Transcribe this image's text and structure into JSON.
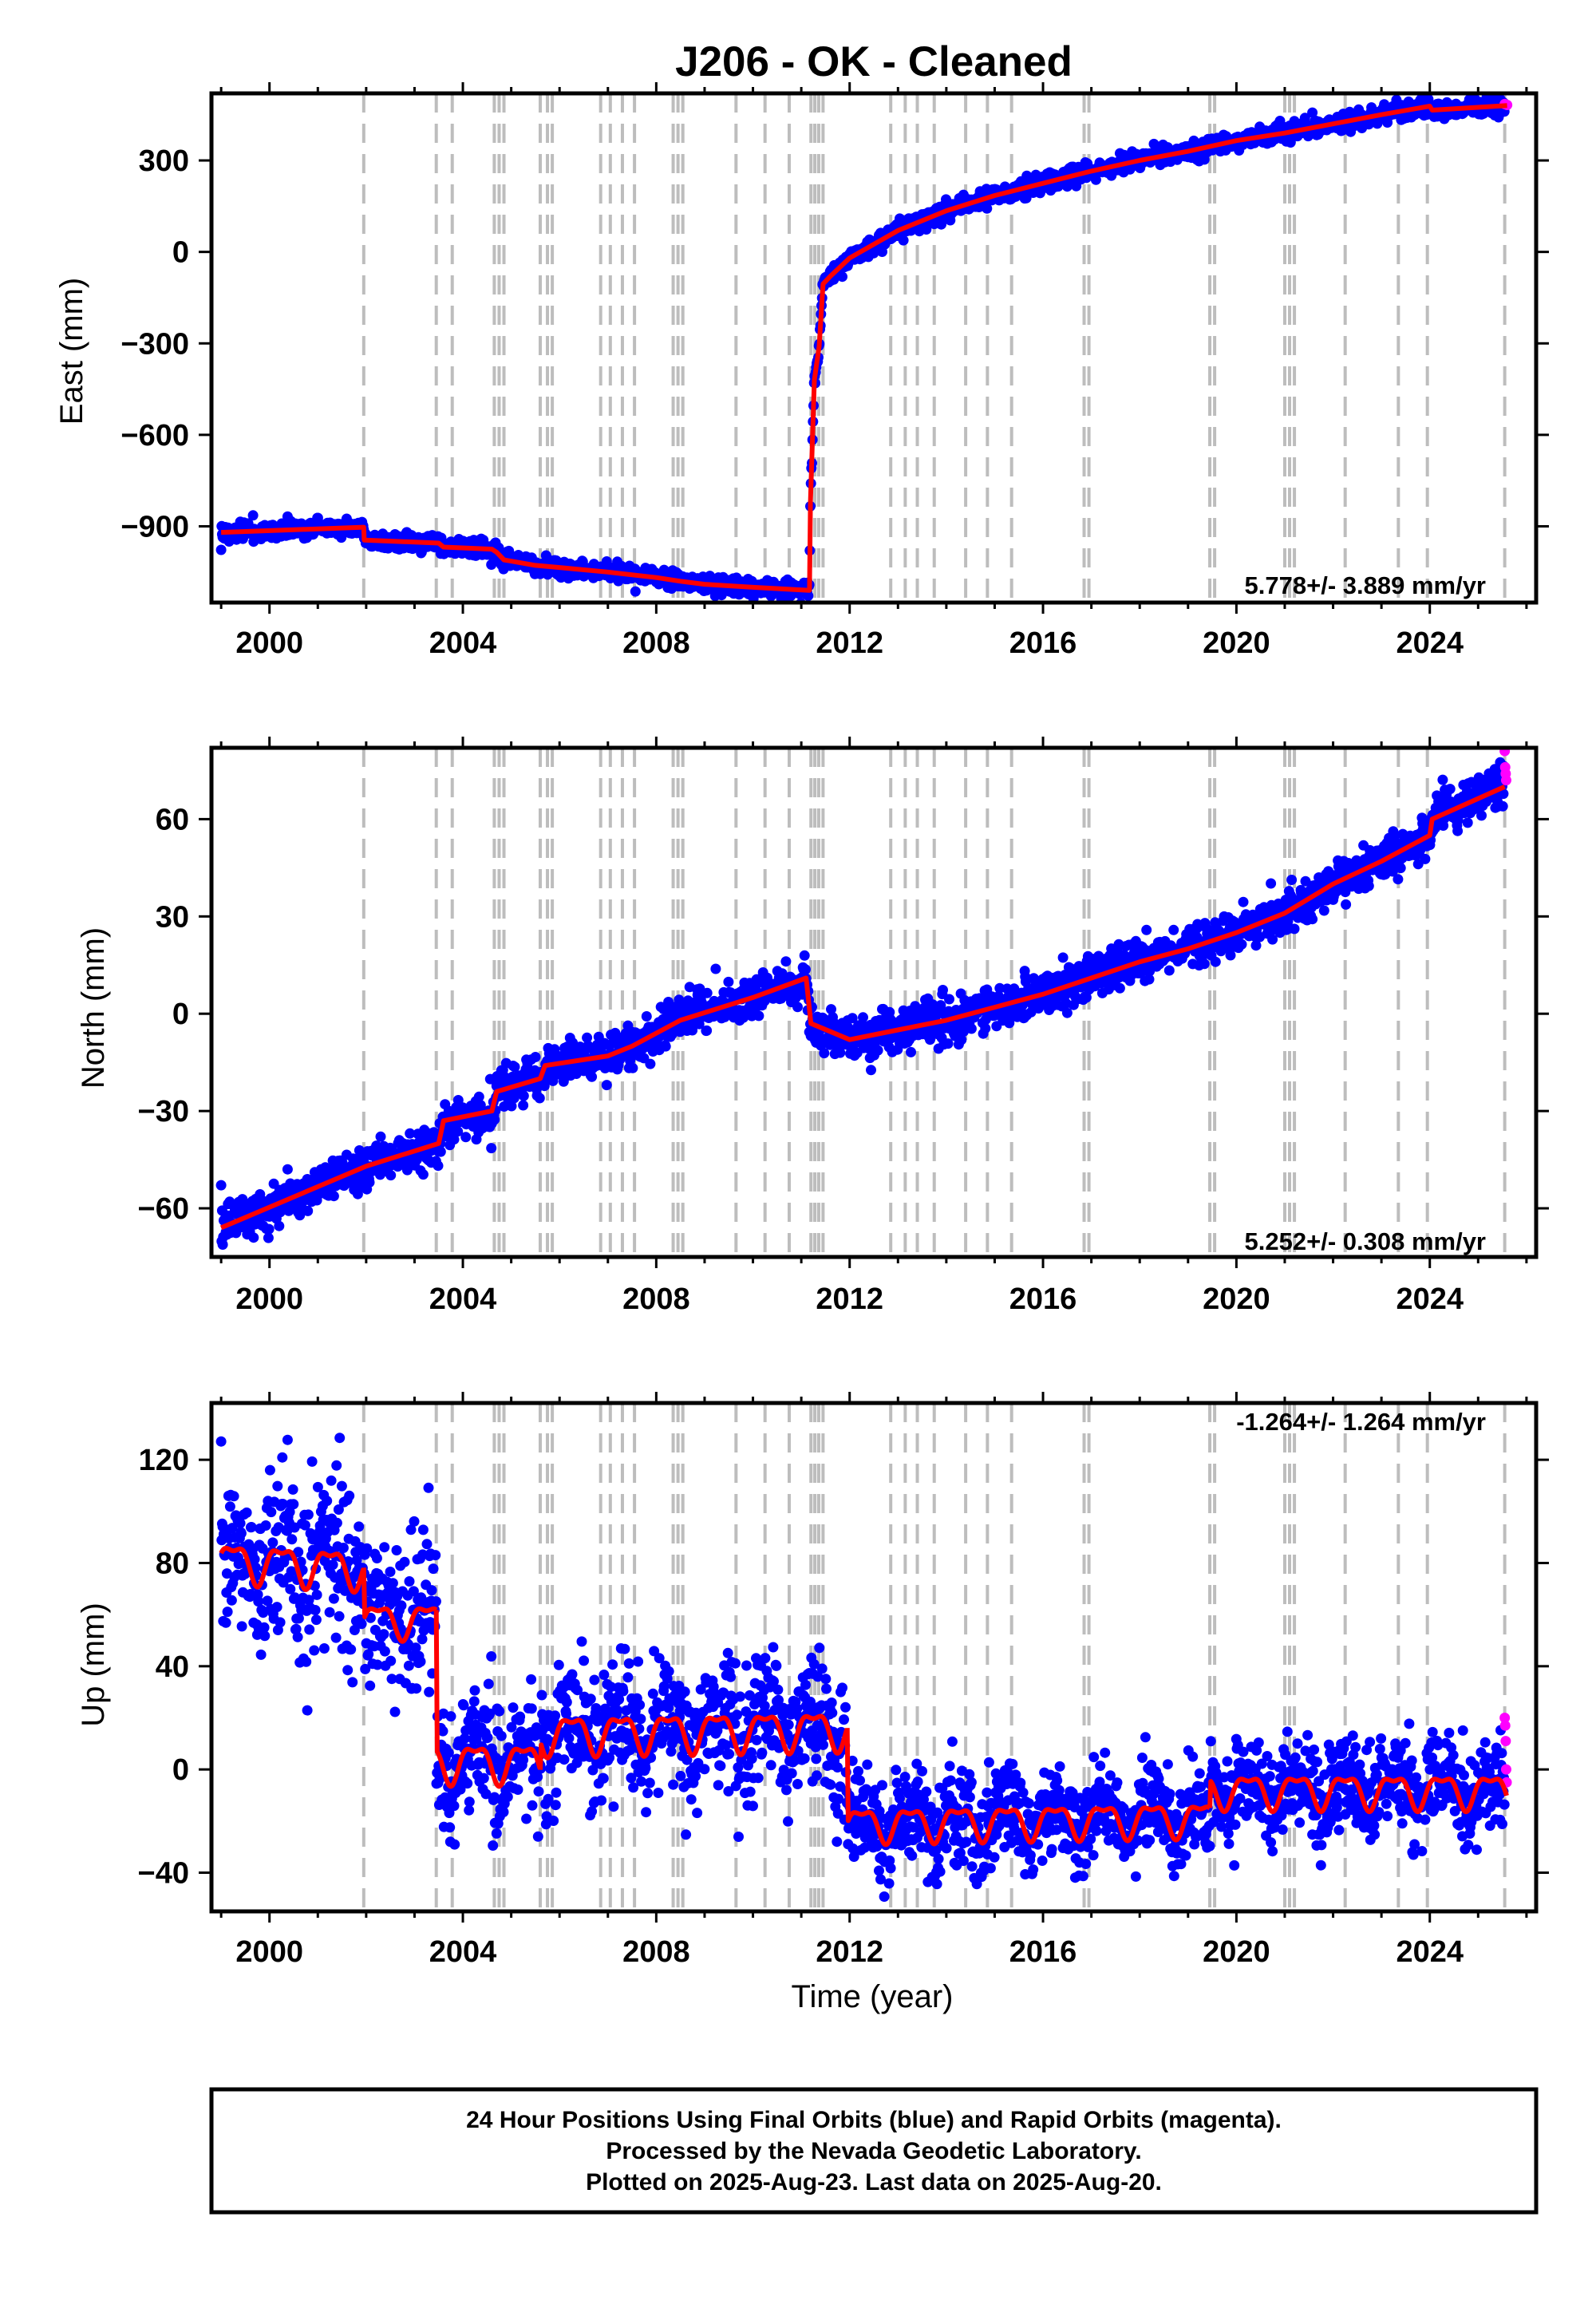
{
  "title": "J206  - OK - Cleaned",
  "colors": {
    "final_orbits": "#0000ff",
    "rapid_orbits": "#ff00ff",
    "model": "#ff0000",
    "event_lines": "#bdbdbd"
  },
  "footer": [
    "24 Hour Positions Using Final Orbits (blue) and Rapid Orbits (magenta).",
    "Processed by the Nevada Geodetic Laboratory.",
    "Plotted on 2025-Aug-23. Last data on 2025-Aug-20."
  ],
  "chart_data": [
    {
      "type": "scatter",
      "component": "east",
      "ylabel": "East (mm)",
      "xlabel": "",
      "xlim": [
        1998.8,
        2026.2
      ],
      "ylim": [
        -1150,
        520
      ],
      "xticks": [
        "2000",
        "2004",
        "2008",
        "2012",
        "2016",
        "2020",
        "2024"
      ],
      "yticks": [
        "-900",
        "-600",
        "-300",
        "0",
        "300"
      ],
      "rate_text": "5.778+/- 3.889 mm/yr",
      "rate_position": "bottom-right",
      "event_lines": [
        2001.95,
        2003.45,
        2003.78,
        2004.65,
        2004.75,
        2004.85,
        2005.6,
        2005.75,
        2005.85,
        2006.85,
        2007.05,
        2007.3,
        2007.55,
        2008.35,
        2008.45,
        2008.55,
        2009.65,
        2010.25,
        2010.75,
        2011.2,
        2011.28,
        2011.36,
        2011.45,
        2012.85,
        2013.15,
        2013.4,
        2013.75,
        2014.4,
        2014.85,
        2015.35,
        2016.85,
        2016.95,
        2019.45,
        2019.55,
        2021.0,
        2021.1,
        2021.2,
        2022.25,
        2023.35,
        2023.95,
        2025.55
      ],
      "model": [
        {
          "x": 1999.0,
          "y": -920
        },
        {
          "x": 2001.95,
          "y": -903
        },
        {
          "x": 2001.96,
          "y": -945
        },
        {
          "x": 2003.5,
          "y": -955
        },
        {
          "x": 2003.6,
          "y": -968
        },
        {
          "x": 2004.6,
          "y": -975
        },
        {
          "x": 2004.7,
          "y": -985
        },
        {
          "x": 2004.85,
          "y": -1010
        },
        {
          "x": 2005.5,
          "y": -1028
        },
        {
          "x": 2006.0,
          "y": -1035
        },
        {
          "x": 2007.0,
          "y": -1050
        },
        {
          "x": 2008.0,
          "y": -1068
        },
        {
          "x": 2008.5,
          "y": -1080
        },
        {
          "x": 2009.0,
          "y": -1090
        },
        {
          "x": 2010.0,
          "y": -1100
        },
        {
          "x": 2011.17,
          "y": -1110
        },
        {
          "x": 2011.19,
          "y": -820
        },
        {
          "x": 2011.27,
          "y": -420
        },
        {
          "x": 2011.37,
          "y": -310
        },
        {
          "x": 2011.45,
          "y": -105
        },
        {
          "x": 2011.6,
          "y": -80
        },
        {
          "x": 2012.0,
          "y": -20
        },
        {
          "x": 2013.0,
          "y": 70
        },
        {
          "x": 2014.0,
          "y": 135
        },
        {
          "x": 2015.0,
          "y": 185
        },
        {
          "x": 2016.0,
          "y": 225
        },
        {
          "x": 2017.0,
          "y": 265
        },
        {
          "x": 2018.0,
          "y": 300
        },
        {
          "x": 2019.0,
          "y": 330
        },
        {
          "x": 2020.0,
          "y": 365
        },
        {
          "x": 2021.0,
          "y": 390
        },
        {
          "x": 2022.0,
          "y": 420
        },
        {
          "x": 2023.0,
          "y": 450
        },
        {
          "x": 2024.0,
          "y": 478
        },
        {
          "x": 2024.05,
          "y": 465
        },
        {
          "x": 2025.6,
          "y": 480
        }
      ],
      "rapid": [
        {
          "x": 2025.55,
          "y": 485
        },
        {
          "x": 2025.6,
          "y": 482
        }
      ]
    },
    {
      "type": "scatter",
      "component": "north",
      "ylabel": "North (mm)",
      "xlabel": "",
      "xlim": [
        1998.8,
        2026.2
      ],
      "ylim": [
        -75,
        82
      ],
      "xticks": [
        "2000",
        "2004",
        "2008",
        "2012",
        "2016",
        "2020",
        "2024"
      ],
      "yticks": [
        "-60",
        "-30",
        "0",
        "30",
        "60"
      ],
      "rate_text": "5.252+/- 0.308 mm/yr",
      "rate_position": "bottom-right",
      "model": [
        {
          "x": 1999.0,
          "y": -66
        },
        {
          "x": 2002.0,
          "y": -47
        },
        {
          "x": 2003.5,
          "y": -40
        },
        {
          "x": 2003.6,
          "y": -33
        },
        {
          "x": 2004.6,
          "y": -30
        },
        {
          "x": 2004.7,
          "y": -24
        },
        {
          "x": 2005.6,
          "y": -20
        },
        {
          "x": 2005.7,
          "y": -16
        },
        {
          "x": 2007.0,
          "y": -13
        },
        {
          "x": 2007.5,
          "y": -10
        },
        {
          "x": 2008.5,
          "y": -2
        },
        {
          "x": 2010.0,
          "y": 5
        },
        {
          "x": 2011.1,
          "y": 11
        },
        {
          "x": 2011.2,
          "y": -3
        },
        {
          "x": 2012.0,
          "y": -8
        },
        {
          "x": 2013.0,
          "y": -5
        },
        {
          "x": 2014.0,
          "y": -2
        },
        {
          "x": 2015.0,
          "y": 2
        },
        {
          "x": 2016.0,
          "y": 6
        },
        {
          "x": 2017.0,
          "y": 11
        },
        {
          "x": 2018.0,
          "y": 16
        },
        {
          "x": 2019.0,
          "y": 20
        },
        {
          "x": 2020.0,
          "y": 25
        },
        {
          "x": 2021.0,
          "y": 31
        },
        {
          "x": 2022.0,
          "y": 40
        },
        {
          "x": 2023.0,
          "y": 47
        },
        {
          "x": 2024.0,
          "y": 55
        },
        {
          "x": 2024.05,
          "y": 60
        },
        {
          "x": 2025.55,
          "y": 70
        }
      ],
      "rapid": [
        {
          "x": 2025.55,
          "y": 81
        },
        {
          "x": 2025.56,
          "y": 76
        },
        {
          "x": 2025.57,
          "y": 74
        },
        {
          "x": 2025.58,
          "y": 72
        }
      ]
    },
    {
      "type": "scatter",
      "component": "up",
      "ylabel": "Up (mm)",
      "xlabel": "Time (year)",
      "xlim": [
        1998.8,
        2026.2
      ],
      "ylim": [
        -55,
        142
      ],
      "xticks": [
        "2000",
        "2004",
        "2008",
        "2012",
        "2016",
        "2020",
        "2024"
      ],
      "yticks": [
        "-40",
        "0",
        "40",
        "80",
        "120"
      ],
      "rate_text": "-1.264+/- 1.264 mm/yr",
      "rate_position": "top-right",
      "model_segments": [
        {
          "start": 1999.0,
          "end": 2001.95,
          "mean": 81,
          "amplitude": 8,
          "trend": -1.0
        },
        {
          "start": 2001.95,
          "end": 2003.45,
          "mean": 58,
          "amplitude": 7,
          "trend": 0
        },
        {
          "start": 2003.45,
          "end": 2005.6,
          "mean": 3,
          "amplitude": 8,
          "trend": 0
        },
        {
          "start": 2005.6,
          "end": 2011.95,
          "mean": 14,
          "amplitude": 8,
          "trend": 0.3
        },
        {
          "start": 2011.95,
          "end": 2019.45,
          "mean": -21,
          "amplitude": 7,
          "trend": 0.3
        },
        {
          "start": 2019.45,
          "end": 2025.6,
          "mean": -8,
          "amplitude": 7,
          "trend": 0
        }
      ],
      "rapid": [
        {
          "x": 2025.55,
          "y": 20
        },
        {
          "x": 2025.56,
          "y": 17
        },
        {
          "x": 2025.57,
          "y": 11
        },
        {
          "x": 2025.58,
          "y": 0
        },
        {
          "x": 2025.59,
          "y": -5
        }
      ]
    }
  ]
}
